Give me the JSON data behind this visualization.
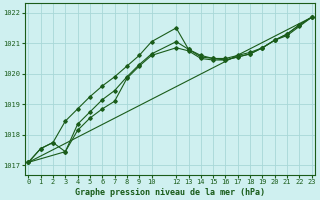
{
  "xlabel": "Graphe pression niveau de la mer (hPa)",
  "bg_color": "#cff0f0",
  "grid_color": "#a8d8d8",
  "line_color": "#1a5c1a",
  "ylim": [
    1016.7,
    1022.3
  ],
  "yticks": [
    1017,
    1018,
    1019,
    1020,
    1021,
    1022
  ],
  "xlim": [
    -0.3,
    23.3
  ],
  "xticks": [
    0,
    1,
    2,
    3,
    4,
    5,
    6,
    7,
    8,
    9,
    10,
    12,
    13,
    14,
    15,
    16,
    17,
    18,
    19,
    20,
    21,
    22,
    23
  ],
  "xlabels": [
    "0",
    "1",
    "2",
    "3",
    "4",
    "5",
    "6",
    "7",
    "8",
    "9",
    "10",
    "12",
    "13",
    "14",
    "15",
    "16",
    "17",
    "18",
    "19",
    "20",
    "21",
    "22",
    "23"
  ],
  "series1_x": [
    0,
    1,
    2,
    3,
    4,
    5,
    6,
    7,
    8,
    9,
    10,
    12,
    13,
    14,
    15,
    16,
    17,
    18,
    19,
    20,
    21,
    22,
    23
  ],
  "series1_y": [
    1017.1,
    1017.55,
    1017.75,
    1017.45,
    1018.15,
    1018.55,
    1018.85,
    1019.1,
    1019.85,
    1020.25,
    1020.6,
    1020.85,
    1020.75,
    1020.5,
    1020.45,
    1020.45,
    1020.55,
    1020.65,
    1020.85,
    1021.1,
    1021.25,
    1021.55,
    1021.85
  ],
  "series2_x": [
    0,
    1,
    2,
    3,
    4,
    5,
    6,
    7,
    8,
    9,
    10,
    12,
    13,
    14,
    15,
    16,
    17,
    18,
    19,
    20,
    21,
    22,
    23
  ],
  "series2_y": [
    1017.1,
    1017.55,
    1017.75,
    1018.45,
    1018.85,
    1019.25,
    1019.6,
    1019.9,
    1020.25,
    1020.6,
    1021.05,
    1021.5,
    1020.8,
    1020.55,
    1020.5,
    1020.5,
    1020.6,
    1020.7,
    1020.85,
    1021.1,
    1021.3,
    1021.6,
    1021.85
  ],
  "series3_x": [
    0,
    3,
    4,
    5,
    6,
    7,
    8,
    9,
    10,
    12,
    13,
    14,
    15,
    16,
    17,
    18,
    19,
    20,
    21,
    22,
    23
  ],
  "series3_y": [
    1017.1,
    1017.45,
    1018.35,
    1018.75,
    1019.15,
    1019.45,
    1019.9,
    1020.3,
    1020.65,
    1021.05,
    1020.8,
    1020.6,
    1020.5,
    1020.45,
    1020.55,
    1020.65,
    1020.85,
    1021.1,
    1021.3,
    1021.6,
    1021.85
  ],
  "series4_x": [
    0,
    23
  ],
  "series4_y": [
    1017.1,
    1021.85
  ]
}
